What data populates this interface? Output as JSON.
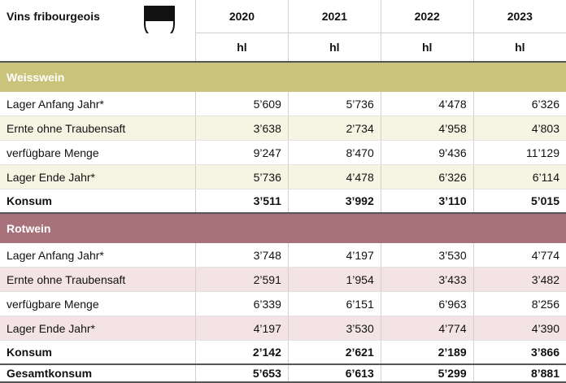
{
  "header": {
    "title": "Vins fribourgeois",
    "years": [
      "2020",
      "2021",
      "2022",
      "2023"
    ],
    "units": [
      "hl",
      "hl",
      "hl",
      "hl"
    ]
  },
  "sections": [
    {
      "name": "Weisswein",
      "rows": [
        {
          "label": "Lager Anfang Jahr*",
          "values": [
            "5’609",
            "5’736",
            "4’478",
            "6’326"
          ]
        },
        {
          "label": "Ernte ohne Traubensaft",
          "values": [
            "3’638",
            "2’734",
            "4’958",
            "4’803"
          ]
        },
        {
          "label": "verfügbare Menge",
          "values": [
            "9’247",
            "8’470",
            "9’436",
            "11’129"
          ]
        },
        {
          "label": "Lager Ende Jahr*",
          "values": [
            "5’736",
            "4’478",
            "6’326",
            "6’114"
          ]
        }
      ],
      "total": {
        "label": "Konsum",
        "values": [
          "3’511",
          "3’992",
          "3’110",
          "5’015"
        ]
      }
    },
    {
      "name": "Rotwein",
      "rows": [
        {
          "label": "Lager Anfang Jahr*",
          "values": [
            "3’748",
            "4’197",
            "3’530",
            "4’774"
          ]
        },
        {
          "label": "Ernte ohne Traubensaft",
          "values": [
            "2’591",
            "1’954",
            "3’433",
            "3’482"
          ]
        },
        {
          "label": "verfügbare Menge",
          "values": [
            "6’339",
            "6’151",
            "6’963",
            "8’256"
          ]
        },
        {
          "label": "Lager Ende Jahr*",
          "values": [
            "4’197",
            "3’530",
            "4’774",
            "4’390"
          ]
        }
      ],
      "total": {
        "label": "Konsum",
        "values": [
          "2’142",
          "2’621",
          "2’189",
          "3’866"
        ]
      }
    }
  ],
  "grand_total": {
    "label": "Gesamtkonsum",
    "values": [
      "5’653",
      "6’613",
      "5’299",
      "8’881"
    ]
  }
}
